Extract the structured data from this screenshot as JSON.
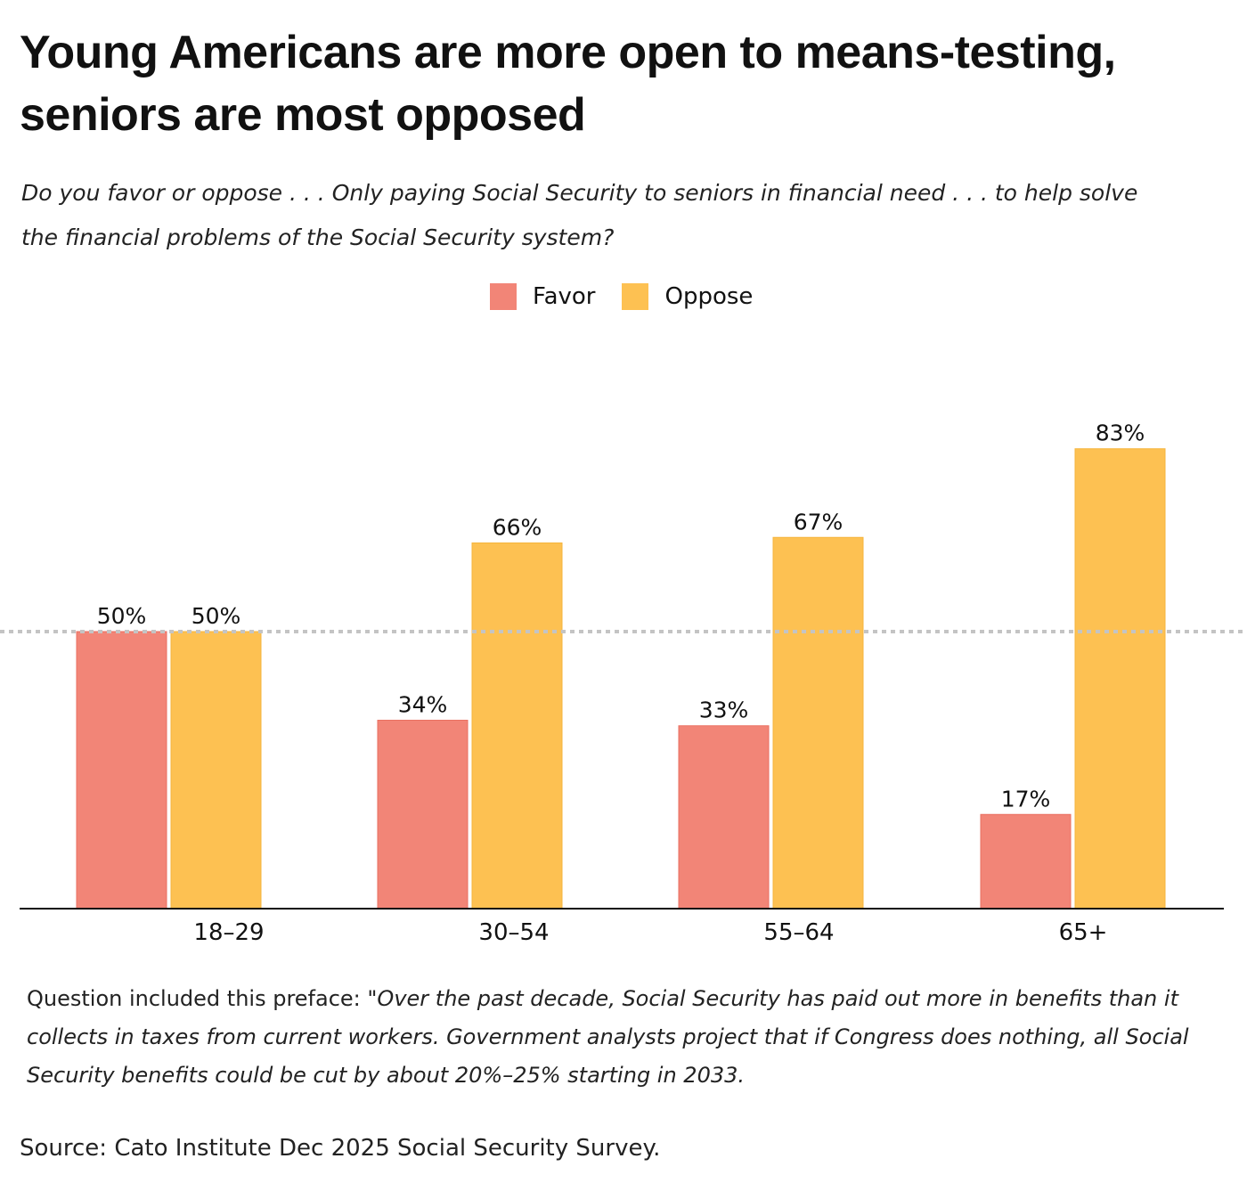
{
  "title": "Young Americans are more open to means-testing, seniors are most opposed",
  "subtitle": "Do you favor or oppose . . . Only paying Social Security to seniors in financial need . . . to help solve the financial problems of the Social Security system?",
  "note_prefix": "Question included this preface: ",
  "note_quote": "\"Over the past decade, Social Security has paid out more in benefits than it collects in taxes from current workers. Government analysts project that if Congress does nothing, all Social Security benefits could be cut by about 20%–25% starting in 2033.",
  "source": "Source: Cato Institute Dec 2025 Social Security Survey.",
  "chart_data": {
    "type": "bar",
    "categories": [
      "18–29",
      "30–54",
      "55–64",
      "65+"
    ],
    "series": [
      {
        "name": "Favor",
        "values": [
          50,
          34,
          33,
          17
        ],
        "color": "#F28577"
      },
      {
        "name": "Oppose",
        "values": [
          50,
          66,
          67,
          83
        ],
        "color": "#FDC152"
      }
    ],
    "data_labels": [
      [
        "50%",
        "34%",
        "33%",
        "17%"
      ],
      [
        "50%",
        "66%",
        "67%",
        "83%"
      ]
    ],
    "reference_line": 50,
    "ylim": [
      0,
      100
    ],
    "grid": false,
    "legend_placement": "top-center"
  }
}
